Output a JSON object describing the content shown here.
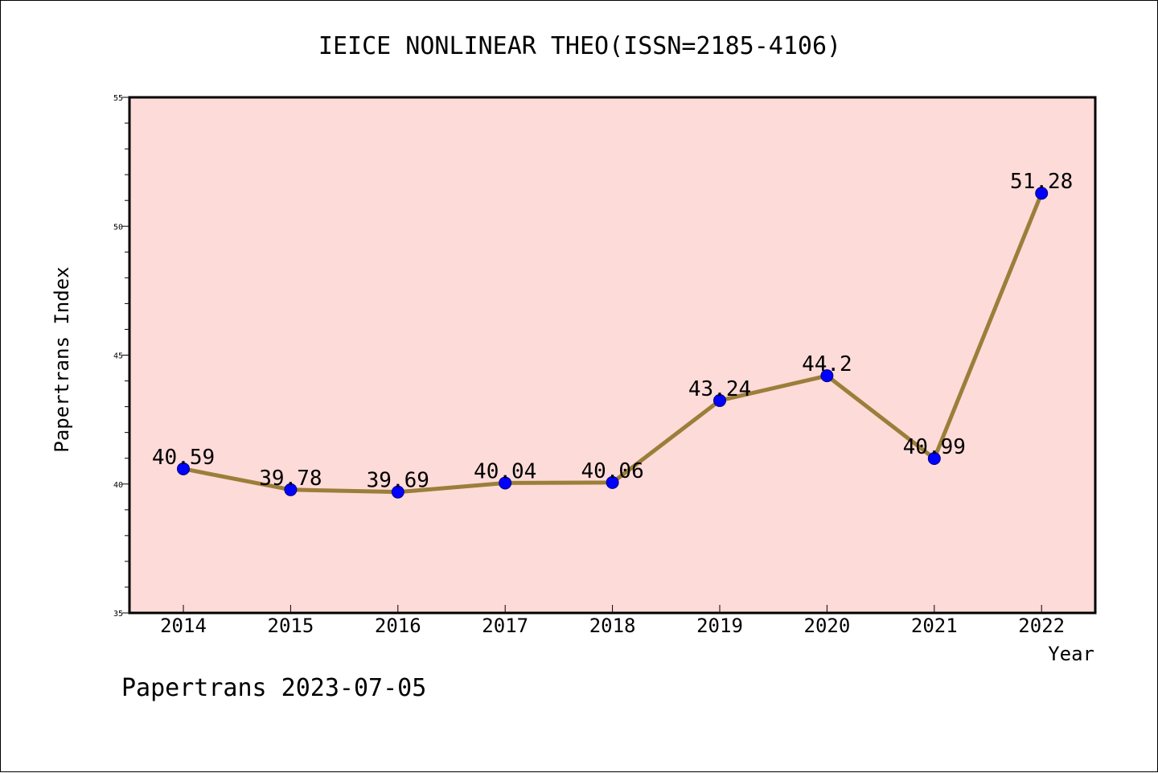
{
  "chart_data": {
    "type": "line",
    "title": "IEICE NONLINEAR THEO(ISSN=2185-4106)",
    "xlabel": "Year",
    "ylabel": "Papertrans Index",
    "categories": [
      "2014",
      "2015",
      "2016",
      "2017",
      "2018",
      "2019",
      "2020",
      "2021",
      "2022"
    ],
    "series": [
      {
        "values": [
          40.59,
          39.78,
          39.69,
          40.04,
          40.06,
          43.24,
          44.2,
          40.99,
          51.28
        ],
        "labels": [
          "40.59",
          "39.78",
          "39.69",
          "40.04",
          "40.06",
          "43.24",
          "44.2",
          "40.99",
          "51.28"
        ]
      }
    ],
    "ylim": [
      35,
      55
    ],
    "yticks": [
      "35",
      "40",
      "45",
      "50",
      "55"
    ],
    "grid": false,
    "legend": "none",
    "colors": {
      "plot_background": "#fddbd8",
      "line": "#9b7e3a",
      "marker": "#0000ff",
      "marker_edge": "#000080"
    }
  },
  "footer": "Papertrans 2023-07-05"
}
